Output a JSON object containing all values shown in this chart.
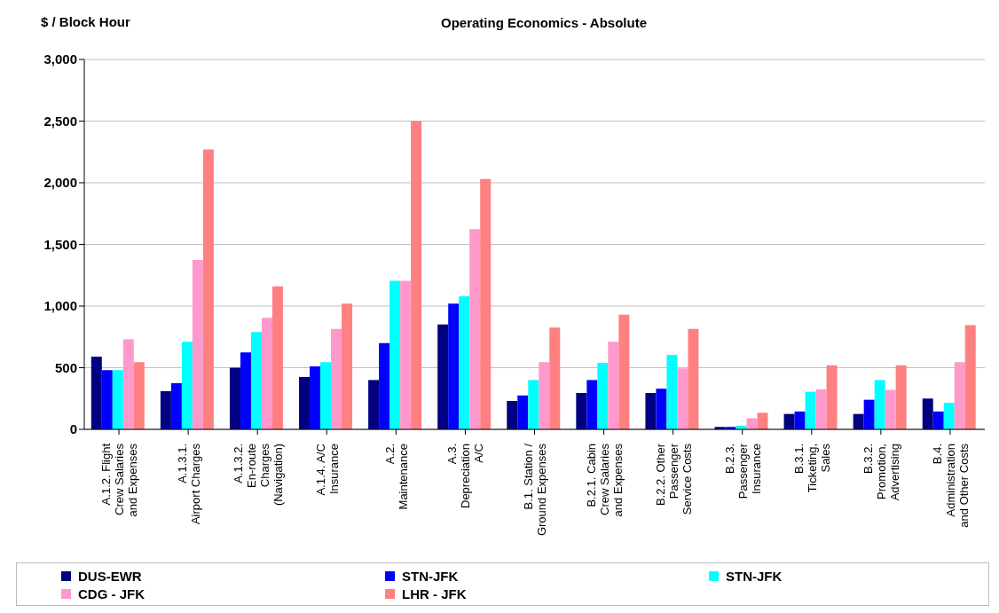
{
  "chart_data": {
    "type": "bar",
    "title": "Operating Economics - Absolute",
    "ylabel": "$ / Block Hour",
    "categories": [
      "A.1.2. Flight Crew Salaries and Expenses",
      "A.1.3.1. Airport Charges",
      "A.1.3.2. En-route Charges (Navigation)",
      "A.1.4. A/C Insurance",
      "A.2. Maintenance",
      "A.3. Depreciation A/C",
      "B.1. Station / Ground Expenses",
      "B.2.1. Cabin Crew Salaries and Expenses",
      "B.2.2. Other Passenger Service Costs",
      "B.2.3. Passenger Insurance",
      "B.3.1. Ticketing, Sales",
      "B.3.2. Promotion, Advertising",
      "B.4. Administration and Other Costs"
    ],
    "series": [
      {
        "name": "DUS-EWR",
        "color": "#000080",
        "values": [
          590,
          310,
          500,
          425,
          400,
          850,
          230,
          295,
          295,
          20,
          125,
          125,
          250
        ]
      },
      {
        "name": "STN-JFK",
        "color": "#0000ff",
        "values": [
          480,
          375,
          625,
          510,
          700,
          1020,
          275,
          400,
          330,
          20,
          145,
          240,
          145
        ]
      },
      {
        "name": "STN-JFK",
        "color": "#00ffff",
        "values": [
          480,
          710,
          790,
          545,
          1205,
          1080,
          400,
          540,
          605,
          30,
          305,
          400,
          215
        ]
      },
      {
        "name": "CDG - JFK",
        "color": "#ff99cc",
        "values": [
          730,
          1375,
          905,
          815,
          1205,
          1625,
          545,
          710,
          495,
          90,
          325,
          320,
          545
        ]
      },
      {
        "name": "LHR - JFK",
        "color": "#ff8080",
        "values": [
          545,
          2270,
          1160,
          1020,
          2500,
          2030,
          825,
          930,
          815,
          135,
          520,
          520,
          845
        ]
      }
    ],
    "ylim": [
      0,
      3000
    ],
    "yticks": [
      {
        "value": 0,
        "label": "0"
      },
      {
        "value": 500,
        "label": "500"
      },
      {
        "value": 1000,
        "label": "1,000"
      },
      {
        "value": 1500,
        "label": "1,500"
      },
      {
        "value": 2000,
        "label": "2,000"
      },
      {
        "value": 2500,
        "label": "2,500"
      },
      {
        "value": 3000,
        "label": "3,000"
      }
    ],
    "grid": "y",
    "legend": "bottom"
  }
}
